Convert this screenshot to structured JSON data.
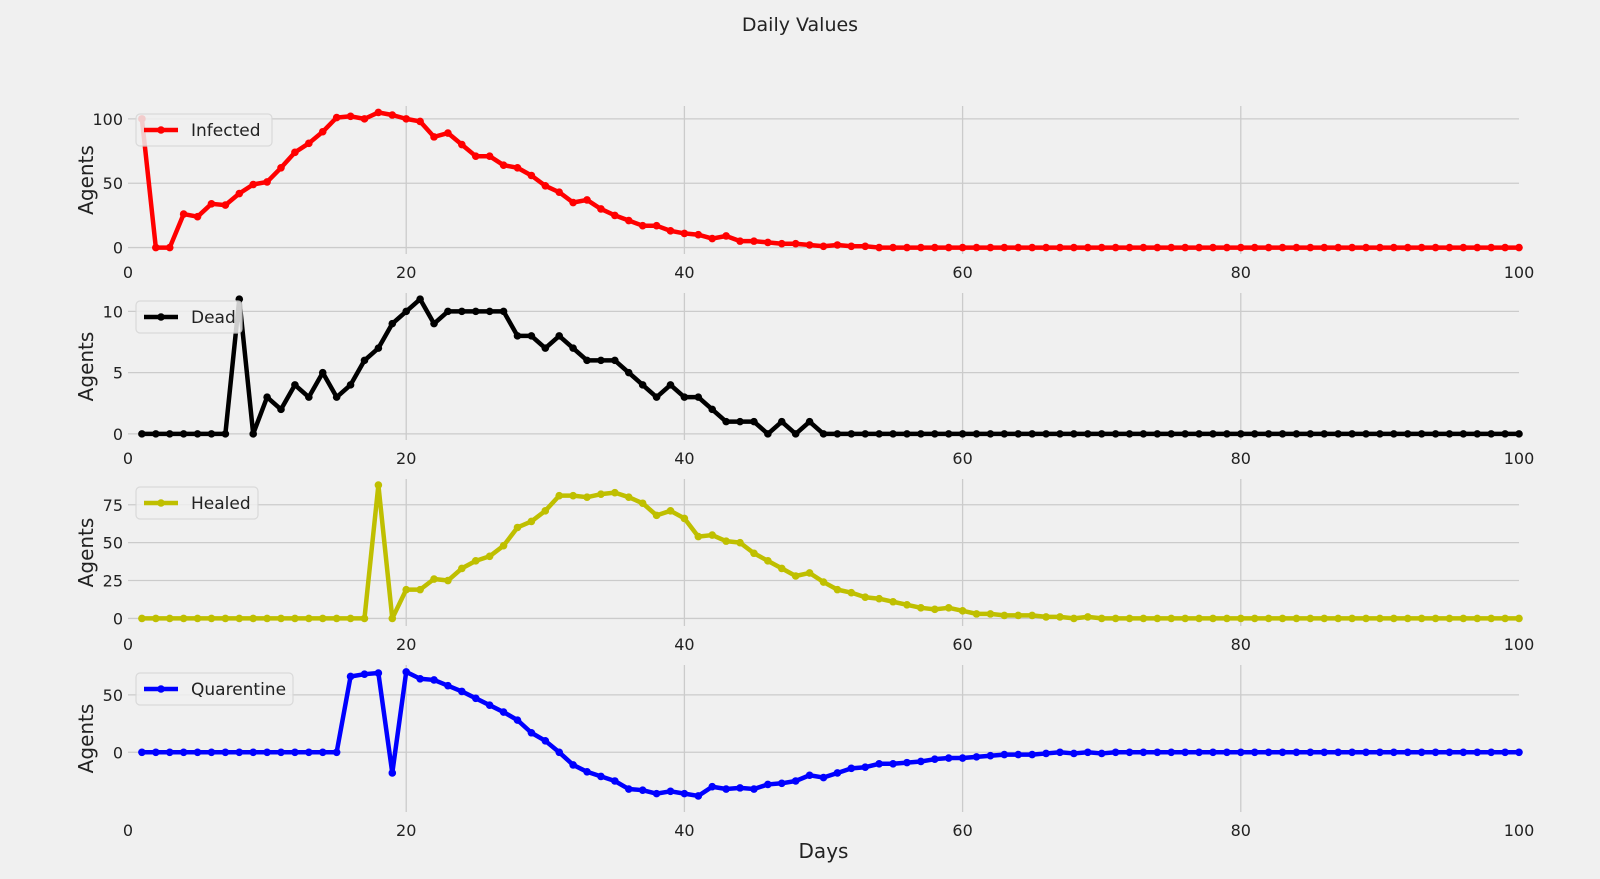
{
  "chart_data": {
    "type": "line",
    "title": "Daily Values",
    "xlim": [
      0,
      100
    ],
    "x_ticks": [
      0,
      20,
      40,
      60,
      80,
      100
    ],
    "grid": true,
    "legend_placement": "upper-left",
    "x": [
      1,
      2,
      3,
      4,
      5,
      6,
      7,
      8,
      9,
      10,
      11,
      12,
      13,
      14,
      15,
      16,
      17,
      18,
      19,
      20,
      21,
      22,
      23,
      24,
      25,
      26,
      27,
      28,
      29,
      30,
      31,
      32,
      33,
      34,
      35,
      36,
      37,
      38,
      39,
      40,
      41,
      42,
      43,
      44,
      45,
      46,
      47,
      48,
      49,
      50,
      51,
      52,
      53,
      54,
      55,
      56,
      57,
      58,
      59,
      60,
      61,
      62,
      63,
      64,
      65,
      66,
      67,
      68,
      69,
      70,
      71,
      72,
      73,
      74,
      75,
      76,
      77,
      78,
      79,
      80,
      81,
      82,
      83,
      84,
      85,
      86,
      87,
      88,
      89,
      90,
      91,
      92,
      93,
      94,
      95,
      96,
      97,
      98,
      99,
      100
    ],
    "panels": [
      {
        "series_name": "Infected",
        "color": "#ff0000",
        "ylabel": "Agents",
        "xlabel": "Days",
        "ylim": [
          -5,
          110
        ],
        "y_ticks": [
          0,
          50,
          100
        ],
        "values": [
          100,
          0,
          0,
          26,
          24,
          34,
          33,
          42,
          49,
          51,
          62,
          74,
          81,
          90,
          101,
          102,
          100,
          105,
          103,
          100,
          98,
          86,
          89,
          80,
          71,
          71,
          64,
          62,
          56,
          48,
          43,
          35,
          37,
          30,
          25,
          21,
          17,
          17,
          13,
          11,
          10,
          7,
          9,
          5,
          5,
          4,
          3,
          3,
          2,
          1,
          2,
          1,
          1,
          0,
          0,
          0,
          0,
          0,
          0,
          0,
          0,
          0,
          0,
          0,
          0,
          0,
          0,
          0,
          0,
          0,
          0,
          0,
          0,
          0,
          0,
          0,
          0,
          0,
          0,
          0,
          0,
          0,
          0,
          0,
          0,
          0,
          0,
          0,
          0,
          0,
          0,
          0,
          0,
          0,
          0,
          0,
          0,
          0,
          0,
          0
        ]
      },
      {
        "series_name": "Dead",
        "color": "#000000",
        "ylabel": "Agents",
        "xlabel": "Days",
        "ylim": [
          -0.5,
          11.5
        ],
        "y_ticks": [
          0,
          5,
          10
        ],
        "values": [
          0,
          0,
          0,
          0,
          0,
          0,
          0,
          11,
          0,
          3,
          2,
          4,
          3,
          5,
          3,
          4,
          6,
          7,
          9,
          10,
          11,
          9,
          10,
          10,
          10,
          10,
          10,
          8,
          8,
          7,
          8,
          7,
          6,
          6,
          6,
          5,
          4,
          3,
          4,
          3,
          3,
          2,
          1,
          1,
          1,
          0,
          1,
          0,
          1,
          0,
          0,
          0,
          0,
          0,
          0,
          0,
          0,
          0,
          0,
          0,
          0,
          0,
          0,
          0,
          0,
          0,
          0,
          0,
          0,
          0,
          0,
          0,
          0,
          0,
          0,
          0,
          0,
          0,
          0,
          0,
          0,
          0,
          0,
          0,
          0,
          0,
          0,
          0,
          0,
          0,
          0,
          0,
          0,
          0,
          0,
          0,
          0,
          0,
          0,
          0
        ]
      },
      {
        "series_name": "Healed",
        "color": "#bfbf00",
        "ylabel": "Agents",
        "xlabel": "Days",
        "ylim": [
          -5,
          92
        ],
        "y_ticks": [
          0,
          25,
          50,
          75
        ],
        "values": [
          0,
          0,
          0,
          0,
          0,
          0,
          0,
          0,
          0,
          0,
          0,
          0,
          0,
          0,
          0,
          0,
          0,
          88,
          0,
          19,
          19,
          26,
          25,
          33,
          38,
          41,
          48,
          60,
          64,
          71,
          81,
          81,
          80,
          82,
          83,
          80,
          76,
          68,
          71,
          66,
          54,
          55,
          51,
          50,
          43,
          38,
          33,
          28,
          30,
          24,
          19,
          17,
          14,
          13,
          11,
          9,
          7,
          6,
          7,
          5,
          3,
          3,
          2,
          2,
          2,
          1,
          1,
          0,
          1,
          0,
          0,
          0,
          0,
          0,
          0,
          0,
          0,
          0,
          0,
          0,
          0,
          0,
          0,
          0,
          0,
          0,
          0,
          0,
          0,
          0,
          0,
          0,
          0,
          0,
          0,
          0,
          0,
          0,
          0,
          0
        ]
      },
      {
        "series_name": "Quarentine",
        "color": "#0000ff",
        "ylabel": "Agents",
        "xlabel": "Days",
        "ylim": [
          -52,
          76
        ],
        "y_ticks": [
          0,
          50
        ],
        "values": [
          0,
          0,
          0,
          0,
          0,
          0,
          0,
          0,
          0,
          0,
          0,
          0,
          0,
          0,
          0,
          66,
          68,
          69,
          -18,
          70,
          64,
          63,
          58,
          53,
          47,
          41,
          35,
          28,
          17,
          10,
          0,
          -11,
          -17,
          -21,
          -25,
          -32,
          -33,
          -36,
          -34,
          -36,
          -38,
          -30,
          -32,
          -31,
          -32,
          -28,
          -27,
          -25,
          -20,
          -22,
          -18,
          -14,
          -13,
          -10,
          -10,
          -9,
          -8,
          -6,
          -5,
          -5,
          -4,
          -3,
          -2,
          -2,
          -2,
          -1,
          0,
          -1,
          0,
          -1,
          0,
          0,
          0,
          0,
          0,
          0,
          0,
          0,
          0,
          0,
          0,
          0,
          0,
          0,
          0,
          0,
          0,
          0,
          0,
          0,
          0,
          0,
          0,
          0,
          0,
          0,
          0,
          0,
          0,
          0
        ]
      }
    ]
  }
}
